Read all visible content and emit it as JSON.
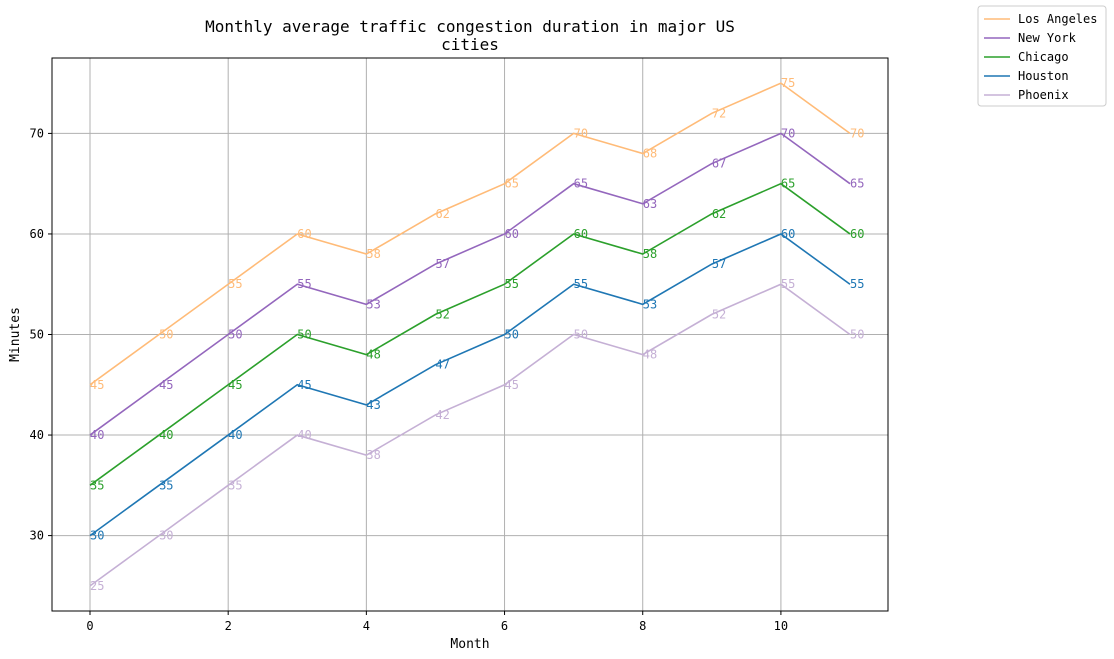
{
  "chart_data": {
    "type": "line",
    "title_line1": "Monthly average traffic congestion duration in major US",
    "title_line2": "cities",
    "xlabel": "Month",
    "ylabel": "Minutes",
    "x": [
      0,
      1,
      2,
      3,
      4,
      5,
      6,
      7,
      8,
      9,
      10,
      11
    ],
    "xlim": [
      -0.55,
      11.55
    ],
    "ylim": [
      22.5,
      77.5
    ],
    "xticks": [
      0,
      2,
      4,
      6,
      8,
      10
    ],
    "yticks": [
      30,
      40,
      50,
      60,
      70
    ],
    "grid": true,
    "legend_position": "outside-top-right",
    "series": [
      {
        "name": "Los Angeles",
        "color": "#ffbb78",
        "values": [
          45,
          50,
          55,
          60,
          58,
          62,
          65,
          70,
          68,
          72,
          75,
          70
        ]
      },
      {
        "name": "New York",
        "color": "#9467bd",
        "values": [
          40,
          45,
          50,
          55,
          53,
          57,
          60,
          65,
          63,
          67,
          70,
          65
        ]
      },
      {
        "name": "Chicago",
        "color": "#2ca02c",
        "values": [
          35,
          40,
          45,
          50,
          48,
          52,
          55,
          60,
          58,
          62,
          65,
          60
        ]
      },
      {
        "name": "Houston",
        "color": "#1f77b4",
        "values": [
          30,
          35,
          40,
          45,
          43,
          47,
          50,
          55,
          53,
          57,
          60,
          55
        ]
      },
      {
        "name": "Phoenix",
        "color": "#c5b0d5",
        "values": [
          25,
          30,
          35,
          40,
          38,
          42,
          45,
          50,
          48,
          52,
          55,
          50
        ]
      }
    ]
  }
}
